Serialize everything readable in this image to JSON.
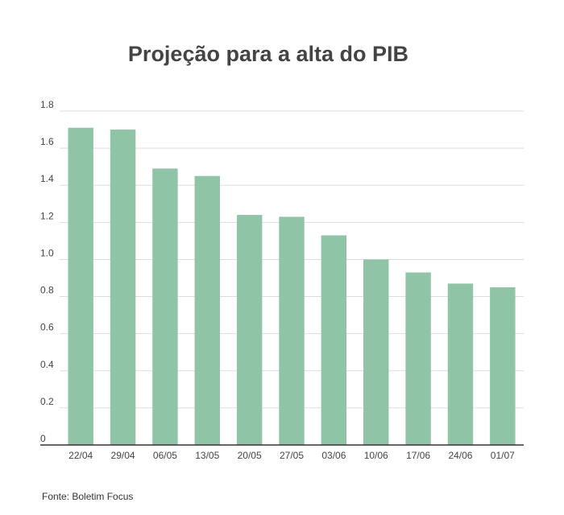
{
  "chart_data": {
    "type": "bar",
    "title": "Projeção para a alta do PIB",
    "xlabel": "",
    "ylabel": "",
    "categories": [
      "22/04",
      "29/04",
      "06/05",
      "13/05",
      "20/05",
      "27/05",
      "03/06",
      "10/06",
      "17/06",
      "24/06",
      "01/07"
    ],
    "values": [
      1.71,
      1.7,
      1.49,
      1.45,
      1.24,
      1.23,
      1.13,
      1.0,
      0.93,
      0.87,
      0.85
    ],
    "ylim": [
      0,
      1.8
    ],
    "yticks": [
      "0",
      "0.2",
      "0.4",
      "0.6",
      "0.8",
      "1.0",
      "1.2",
      "1.4",
      "1.6",
      "1.8"
    ],
    "grid": true,
    "bar_color": "#8fc4a6",
    "grid_color": "#dddddd"
  },
  "source": "Fonte: Boletim Focus"
}
